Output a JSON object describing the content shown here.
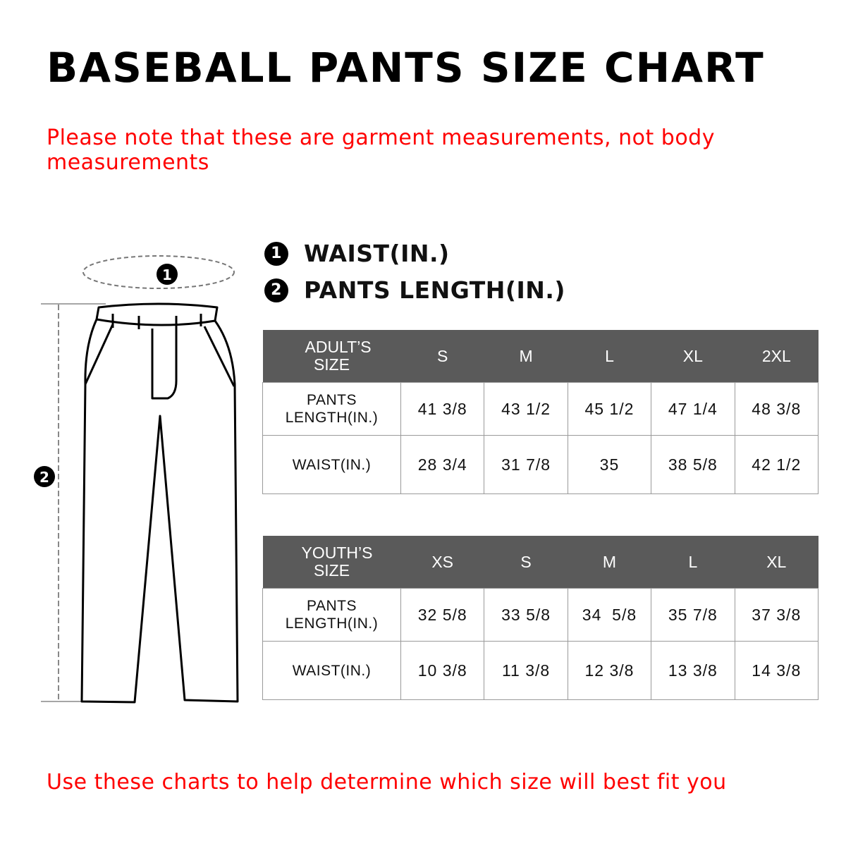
{
  "title": "BASEBALL PANTS SIZE CHART",
  "note": "Please note that these are garment measurements, not body measurements",
  "legend": [
    {
      "num": "1",
      "label": "WAIST(IN.)"
    },
    {
      "num": "2",
      "label": "PANTS LENGTH(IN.)"
    }
  ],
  "illustration": {
    "marker_waist": "1",
    "marker_length": "2"
  },
  "adult": {
    "header": "ADULT’S SIZE",
    "sizes": [
      "S",
      "M",
      "L",
      "XL",
      "2XL"
    ],
    "rows": [
      {
        "label": "PANTS LENGTH(IN.)",
        "values": [
          "41 3/8",
          "43 1/2",
          "45 1/2",
          "47 1/4",
          "48 3/8"
        ]
      },
      {
        "label": "WAIST(IN.)",
        "values": [
          "28 3/4",
          "31 7/8",
          "35",
          "38 5/8",
          "42 1/2"
        ]
      }
    ]
  },
  "youth": {
    "header": "YOUTH’S SIZE",
    "sizes": [
      "XS",
      "S",
      "M",
      "L",
      "XL"
    ],
    "rows": [
      {
        "label": "PANTS LENGTH(IN.)",
        "values": [
          "32 5/8",
          "33 5/8",
          "34  5/8",
          "35 7/8",
          "37 3/8"
        ]
      },
      {
        "label": "WAIST(IN.)",
        "values": [
          "10 3/8",
          "11 3/8",
          "12 3/8",
          "13 3/8",
          "14 3/8"
        ]
      }
    ]
  },
  "footer": "Use these charts to help determine which size will best fit you",
  "colors": {
    "header_bg": "#5a5a5a",
    "accent": "#ff0000"
  }
}
